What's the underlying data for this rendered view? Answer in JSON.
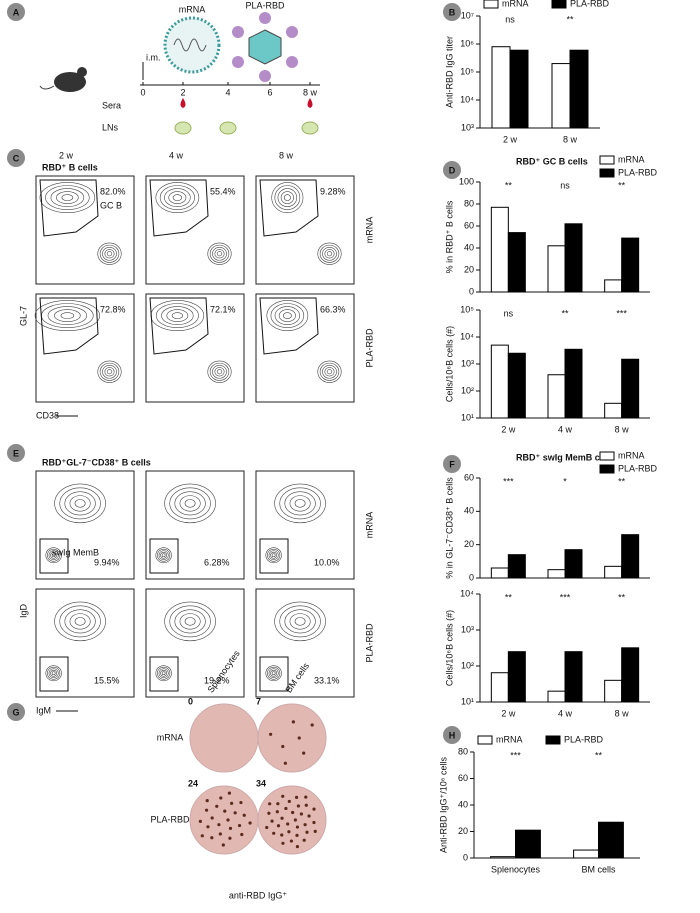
{
  "panel_a": {
    "label": "A",
    "mrna": "mRNA",
    "pla": "PLA-RBD",
    "route": "i.m.",
    "timeline": [
      "0",
      "2",
      "4",
      "6",
      "8 w"
    ],
    "rows": [
      "Sera",
      "LNs"
    ]
  },
  "panel_c": {
    "label": "C",
    "title": "RBD⁺ B cells",
    "columns": [
      "2 w",
      "4 w",
      "8 w"
    ],
    "rows": [
      "mRNA",
      "PLA-RBD"
    ],
    "gate_name": "GC B",
    "percentages": [
      [
        "82.0%",
        "55.4%",
        "9.28%"
      ],
      [
        "72.8%",
        "72.1%",
        "66.3%"
      ]
    ],
    "y_axis": "GL-7",
    "x_axis": "CD38"
  },
  "panel_e": {
    "label": "E",
    "title": "RBD⁺GL-7⁻CD38⁺ B cells",
    "rows": [
      "mRNA",
      "PLA-RBD"
    ],
    "gate_name": "swIg MemB",
    "percentages": [
      [
        "9.94%",
        "6.28%",
        "10.0%"
      ],
      [
        "15.5%",
        "19.2%",
        "33.1%"
      ]
    ],
    "y_axis": "IgD",
    "x_axis": "IgM"
  },
  "panel_g": {
    "label": "G",
    "columns": [
      "Splenocytes",
      "BM cells"
    ],
    "rows": [
      "mRNA",
      "PLA-RBD"
    ],
    "counts": [
      [
        0,
        7
      ],
      [
        24,
        34
      ]
    ],
    "caption": "anti-RBD IgG⁺"
  },
  "chart_data": [
    {
      "type": "bar",
      "panel": "B",
      "y_label": "Anti-RBD IgG titer",
      "log": true,
      "legend": "top",
      "categories": [
        "2 w",
        "8 w"
      ],
      "annotations": [
        "ns",
        "**"
      ],
      "series": [
        {
          "name": "mRNA",
          "color": "#ffffff",
          "values": [
            800000,
            200000
          ]
        },
        {
          "name": "PLA-RBD",
          "color": "#000000",
          "values": [
            600000,
            600000
          ]
        }
      ],
      "ylim": [
        1000,
        10000000
      ],
      "yticks": [
        {
          "value": 1000,
          "label": "10³"
        },
        {
          "value": 10000,
          "label": "10⁴"
        },
        {
          "value": 100000,
          "label": "10⁵"
        },
        {
          "value": 1000000,
          "label": "10⁶"
        },
        {
          "value": 10000000,
          "label": "10⁷"
        }
      ]
    },
    {
      "type": "bar",
      "panel": "D",
      "title": "RBD⁺ GC B cells",
      "y_label": "% in RBD⁺ B cells",
      "legend": "upper right",
      "categories": [
        "2 w",
        "4 w",
        "8 w"
      ],
      "annotations": [
        "**",
        "ns",
        "**"
      ],
      "show_categories": false,
      "series": [
        {
          "name": "mRNA",
          "color": "#ffffff",
          "values": [
            77,
            42,
            11
          ]
        },
        {
          "name": "PLA-RBD",
          "color": "#000000",
          "values": [
            54,
            62,
            49
          ]
        }
      ],
      "ylim": [
        0,
        100
      ],
      "yticks": [
        0,
        20,
        40,
        60,
        80,
        100
      ]
    },
    {
      "type": "bar",
      "y_label": "Cells/10⁶B cells (#)",
      "log": true,
      "categories": [
        "2 w",
        "4 w",
        "8 w"
      ],
      "annotations": [
        "ns",
        "**",
        "***"
      ],
      "series": [
        {
          "name": "mRNA",
          "color": "#ffffff",
          "values": [
            5000,
            400,
            35
          ]
        },
        {
          "name": "PLA-RBD",
          "color": "#000000",
          "values": [
            2500,
            3500,
            1500
          ]
        }
      ],
      "ylim": [
        10,
        100000
      ],
      "yticks": [
        {
          "value": 10,
          "label": "10¹"
        },
        {
          "value": 100,
          "label": "10²"
        },
        {
          "value": 1000,
          "label": "10³"
        },
        {
          "value": 10000,
          "label": "10⁴"
        },
        {
          "value": 100000,
          "label": "10⁵"
        }
      ]
    },
    {
      "type": "bar",
      "panel": "F",
      "title": "RBD⁺ swIg MemB cells",
      "y_label": "% in GL-7⁻CD38⁺ B cells",
      "legend": "upper right",
      "categories": [
        "2 w",
        "4 w",
        "8 w"
      ],
      "annotations": [
        "***",
        "*",
        "**"
      ],
      "show_categories": false,
      "series": [
        {
          "name": "mRNA",
          "color": "#ffffff",
          "values": [
            6,
            5,
            7
          ]
        },
        {
          "name": "PLA-RBD",
          "color": "#000000",
          "values": [
            14,
            17,
            26
          ]
        }
      ],
      "ylim": [
        0,
        60
      ],
      "yticks": [
        0,
        20,
        40,
        60
      ]
    },
    {
      "type": "bar",
      "y_label": "Cells/10⁶B cells (#)",
      "log": true,
      "categories": [
        "2 w",
        "4 w",
        "8 w"
      ],
      "annotations": [
        "**",
        "***",
        "**"
      ],
      "series": [
        {
          "name": "mRNA",
          "color": "#ffffff",
          "values": [
            65,
            20,
            40
          ]
        },
        {
          "name": "PLA-RBD",
          "color": "#000000",
          "values": [
            250,
            250,
            320
          ]
        }
      ],
      "ylim": [
        10,
        10000
      ],
      "yticks": [
        {
          "value": 10,
          "label": "10¹"
        },
        {
          "value": 100,
          "label": "10²"
        },
        {
          "value": 1000,
          "label": "10³"
        },
        {
          "value": 10000,
          "label": "10⁴"
        }
      ]
    },
    {
      "type": "bar",
      "panel": "H",
      "y_label": "Anti-RBD IgG⁺/10⁶ cells",
      "legend": "top",
      "categories": [
        "Splenocytes",
        "BM cells"
      ],
      "annotations": [
        "***",
        "**"
      ],
      "series": [
        {
          "name": "mRNA",
          "color": "#ffffff",
          "values": [
            1,
            6
          ]
        },
        {
          "name": "PLA-RBD",
          "color": "#000000",
          "values": [
            21,
            27
          ]
        }
      ],
      "ylim": [
        0,
        80
      ],
      "yticks": [
        0,
        20,
        40,
        60,
        80
      ]
    }
  ]
}
